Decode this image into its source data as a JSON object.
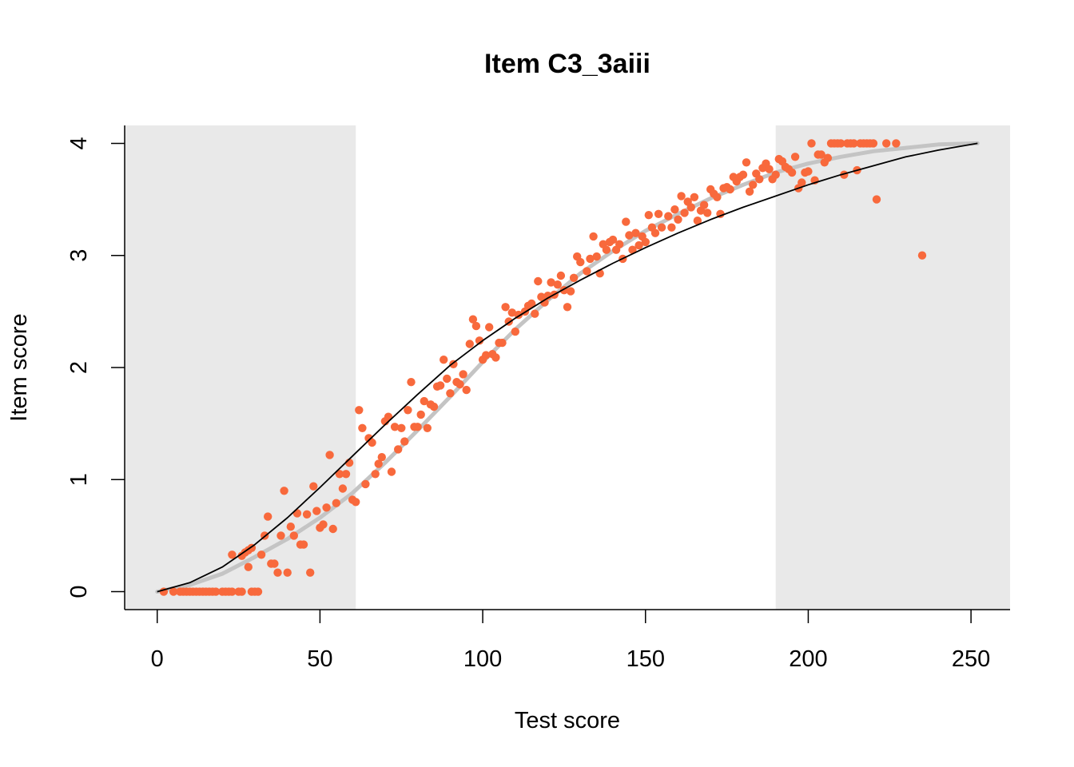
{
  "chart_data": {
    "type": "scatter",
    "title": "Item C3_3aiii",
    "xlabel": "Test score",
    "ylabel": "Item score",
    "xlim": [
      -10,
      262
    ],
    "ylim": [
      -0.16,
      4.16
    ],
    "x_ticks": [
      0,
      50,
      100,
      150,
      200,
      250
    ],
    "y_ticks": [
      0,
      1,
      2,
      3,
      4
    ],
    "x_tick_labels": [
      "0",
      "50",
      "100",
      "150",
      "200",
      "250"
    ],
    "y_tick_labels": [
      "0",
      "1",
      "2",
      "3",
      "4"
    ],
    "shaded_regions": [
      [
        -10,
        61
      ],
      [
        190,
        262
      ]
    ],
    "grid": false,
    "colors": {
      "points": "#f8693c",
      "shade": "#e9e9e9",
      "smooth_curve": "#c4c4c4",
      "model_curve": "#000000"
    },
    "points": [
      [
        2,
        0
      ],
      [
        5,
        0
      ],
      [
        7,
        0
      ],
      [
        8,
        0
      ],
      [
        9,
        0
      ],
      [
        10,
        0
      ],
      [
        11,
        0
      ],
      [
        12,
        0
      ],
      [
        13,
        0
      ],
      [
        14,
        0
      ],
      [
        15,
        0
      ],
      [
        16,
        0
      ],
      [
        17,
        0
      ],
      [
        18,
        0
      ],
      [
        20,
        0
      ],
      [
        21,
        0
      ],
      [
        22,
        0
      ],
      [
        23,
        0
      ],
      [
        25,
        0
      ],
      [
        26,
        0
      ],
      [
        29,
        0
      ],
      [
        30,
        0
      ],
      [
        31,
        0
      ],
      [
        23,
        0.33
      ],
      [
        26,
        0.32
      ],
      [
        27,
        0.35
      ],
      [
        28,
        0.37
      ],
      [
        28,
        0.22
      ],
      [
        29,
        0.39
      ],
      [
        32,
        0.33
      ],
      [
        33,
        0.5
      ],
      [
        34,
        0.67
      ],
      [
        35,
        0.25
      ],
      [
        36,
        0.25
      ],
      [
        37,
        0.17
      ],
      [
        38,
        0.5
      ],
      [
        39,
        0.9
      ],
      [
        40,
        0.17
      ],
      [
        41,
        0.58
      ],
      [
        42,
        0.5
      ],
      [
        43,
        0.7
      ],
      [
        44,
        0.42
      ],
      [
        45,
        0.42
      ],
      [
        46,
        0.69
      ],
      [
        47,
        0.17
      ],
      [
        48,
        0.94
      ],
      [
        49,
        0.72
      ],
      [
        50,
        0.57
      ],
      [
        51,
        0.6
      ],
      [
        52,
        0.75
      ],
      [
        53,
        1.22
      ],
      [
        54,
        0.56
      ],
      [
        55,
        0.79
      ],
      [
        56,
        1.05
      ],
      [
        57,
        0.92
      ],
      [
        58,
        1.05
      ],
      [
        59,
        1.15
      ],
      [
        60,
        0.82
      ],
      [
        61,
        0.8
      ],
      [
        62,
        1.62
      ],
      [
        63,
        1.46
      ],
      [
        64,
        0.96
      ],
      [
        65,
        1.37
      ],
      [
        66,
        1.33
      ],
      [
        67,
        1.05
      ],
      [
        68,
        1.14
      ],
      [
        69,
        1.2
      ],
      [
        70,
        1.52
      ],
      [
        71,
        1.56
      ],
      [
        72,
        1.07
      ],
      [
        73,
        1.47
      ],
      [
        74,
        1.27
      ],
      [
        75,
        1.46
      ],
      [
        76,
        1.34
      ],
      [
        77,
        1.62
      ],
      [
        78,
        1.87
      ],
      [
        79,
        1.47
      ],
      [
        80,
        1.47
      ],
      [
        81,
        1.58
      ],
      [
        82,
        1.7
      ],
      [
        83,
        1.46
      ],
      [
        84,
        1.67
      ],
      [
        85,
        1.65
      ],
      [
        86,
        1.83
      ],
      [
        87,
        1.84
      ],
      [
        88,
        2.07
      ],
      [
        89,
        1.9
      ],
      [
        90,
        1.77
      ],
      [
        91,
        2.03
      ],
      [
        92,
        1.87
      ],
      [
        93,
        1.85
      ],
      [
        94,
        1.94
      ],
      [
        95,
        1.8
      ],
      [
        96,
        2.21
      ],
      [
        97,
        2.43
      ],
      [
        98,
        2.37
      ],
      [
        99,
        2.24
      ],
      [
        100,
        2.07
      ],
      [
        101,
        2.11
      ],
      [
        102,
        2.36
      ],
      [
        103,
        2.12
      ],
      [
        104,
        2.09
      ],
      [
        105,
        2.22
      ],
      [
        106,
        2.22
      ],
      [
        107,
        2.54
      ],
      [
        108,
        2.41
      ],
      [
        109,
        2.49
      ],
      [
        110,
        2.32
      ],
      [
        111,
        2.47
      ],
      [
        113,
        2.5
      ],
      [
        114,
        2.55
      ],
      [
        115,
        2.57
      ],
      [
        116,
        2.48
      ],
      [
        117,
        2.77
      ],
      [
        118,
        2.63
      ],
      [
        119,
        2.58
      ],
      [
        120,
        2.64
      ],
      [
        121,
        2.76
      ],
      [
        122,
        2.65
      ],
      [
        123,
        2.74
      ],
      [
        124,
        2.82
      ],
      [
        125,
        2.69
      ],
      [
        126,
        2.54
      ],
      [
        127,
        2.68
      ],
      [
        128,
        2.8
      ],
      [
        129,
        2.99
      ],
      [
        130,
        2.94
      ],
      [
        132,
        2.86
      ],
      [
        133,
        2.97
      ],
      [
        134,
        3.17
      ],
      [
        135,
        2.99
      ],
      [
        136,
        2.84
      ],
      [
        137,
        3.1
      ],
      [
        138,
        3.05
      ],
      [
        139,
        3.12
      ],
      [
        140,
        3.14
      ],
      [
        141,
        3.05
      ],
      [
        142,
        3.1
      ],
      [
        143,
        2.97
      ],
      [
        144,
        3.3
      ],
      [
        145,
        3.18
      ],
      [
        146,
        3.05
      ],
      [
        147,
        3.2
      ],
      [
        148,
        3.09
      ],
      [
        149,
        3.17
      ],
      [
        150,
        3.12
      ],
      [
        151,
        3.36
      ],
      [
        152,
        3.25
      ],
      [
        153,
        3.2
      ],
      [
        154,
        3.37
      ],
      [
        155,
        3.25
      ],
      [
        157,
        3.35
      ],
      [
        158,
        3.25
      ],
      [
        159,
        3.41
      ],
      [
        160,
        3.32
      ],
      [
        161,
        3.53
      ],
      [
        162,
        3.38
      ],
      [
        163,
        3.48
      ],
      [
        164,
        3.43
      ],
      [
        165,
        3.52
      ],
      [
        166,
        3.31
      ],
      [
        167,
        3.4
      ],
      [
        168,
        3.45
      ],
      [
        169,
        3.38
      ],
      [
        170,
        3.59
      ],
      [
        171,
        3.55
      ],
      [
        172,
        3.52
      ],
      [
        173,
        3.37
      ],
      [
        174,
        3.6
      ],
      [
        175,
        3.61
      ],
      [
        176,
        3.59
      ],
      [
        177,
        3.7
      ],
      [
        178,
        3.66
      ],
      [
        179,
        3.7
      ],
      [
        180,
        3.72
      ],
      [
        181,
        3.83
      ],
      [
        182,
        3.57
      ],
      [
        183,
        3.63
      ],
      [
        184,
        3.73
      ],
      [
        185,
        3.68
      ],
      [
        186,
        3.78
      ],
      [
        187,
        3.82
      ],
      [
        188,
        3.77
      ],
      [
        189,
        3.68
      ],
      [
        190,
        3.72
      ],
      [
        191,
        3.86
      ],
      [
        192,
        3.84
      ],
      [
        193,
        3.79
      ],
      [
        194,
        3.77
      ],
      [
        195,
        3.74
      ],
      [
        196,
        3.88
      ],
      [
        197,
        3.6
      ],
      [
        198,
        3.65
      ],
      [
        199,
        3.74
      ],
      [
        200,
        3.75
      ],
      [
        201,
        4
      ],
      [
        202,
        3.67
      ],
      [
        203,
        3.9
      ],
      [
        204,
        3.9
      ],
      [
        205,
        3.83
      ],
      [
        206,
        3.87
      ],
      [
        207,
        4
      ],
      [
        208,
        4
      ],
      [
        209,
        4
      ],
      [
        210,
        4
      ],
      [
        211,
        3.72
      ],
      [
        212,
        4
      ],
      [
        213,
        4
      ],
      [
        214,
        4
      ],
      [
        215,
        3.76
      ],
      [
        216,
        4
      ],
      [
        217,
        4
      ],
      [
        218,
        4
      ],
      [
        219,
        4
      ],
      [
        220,
        4
      ],
      [
        221,
        3.5
      ],
      [
        224,
        4
      ],
      [
        227,
        4
      ],
      [
        235,
        3
      ]
    ],
    "smooth_curve": {
      "x": [
        0,
        10,
        20,
        30,
        40,
        50,
        60,
        70,
        80,
        90,
        100,
        110,
        120,
        130,
        140,
        150,
        160,
        170,
        180,
        190,
        200,
        210,
        220,
        230,
        240,
        252
      ],
      "y": [
        0,
        0.06,
        0.16,
        0.31,
        0.47,
        0.66,
        0.88,
        1.15,
        1.44,
        1.74,
        2.05,
        2.34,
        2.6,
        2.84,
        3.04,
        3.22,
        3.37,
        3.51,
        3.63,
        3.74,
        3.82,
        3.88,
        3.93,
        3.96,
        3.99,
        4.0
      ]
    },
    "model_curve": {
      "x": [
        0,
        10,
        20,
        30,
        40,
        50,
        60,
        70,
        80,
        90,
        100,
        110,
        120,
        130,
        140,
        150,
        160,
        170,
        180,
        190,
        200,
        210,
        220,
        230,
        240,
        252
      ],
      "y": [
        0,
        0.08,
        0.22,
        0.42,
        0.66,
        0.93,
        1.21,
        1.49,
        1.76,
        2.02,
        2.24,
        2.44,
        2.62,
        2.78,
        2.93,
        3.07,
        3.2,
        3.32,
        3.43,
        3.53,
        3.63,
        3.72,
        3.8,
        3.88,
        3.94,
        4.0
      ]
    }
  }
}
